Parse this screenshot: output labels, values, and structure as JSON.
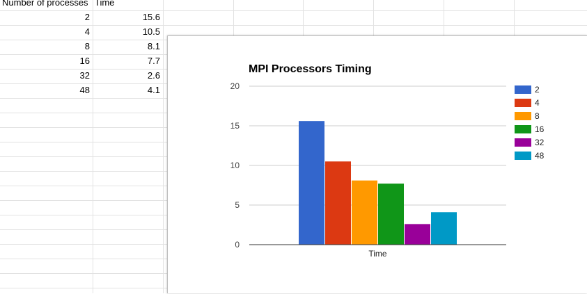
{
  "sheet": {
    "headers": [
      "Number of processes",
      "Time"
    ],
    "rows": [
      {
        "processes": "2",
        "time": "15.6"
      },
      {
        "processes": "4",
        "time": "10.5"
      },
      {
        "processes": "8",
        "time": "8.1"
      },
      {
        "processes": "16",
        "time": "7.7"
      },
      {
        "processes": "32",
        "time": "2.6"
      },
      {
        "processes": "48",
        "time": "4.1"
      }
    ]
  },
  "chart_data": {
    "type": "bar",
    "title": "MPI Processors Timing",
    "categories": [
      "Time"
    ],
    "xlabel": "",
    "ylabel": "",
    "ylim": [
      0,
      20
    ],
    "yticks": [
      "0",
      "5",
      "10",
      "15",
      "20"
    ],
    "grid": true,
    "legend_position": "right",
    "series": [
      {
        "name": "2",
        "values": [
          15.6
        ],
        "color": "#3366cc"
      },
      {
        "name": "4",
        "values": [
          10.5
        ],
        "color": "#dc3912"
      },
      {
        "name": "8",
        "values": [
          8.1
        ],
        "color": "#ff9900"
      },
      {
        "name": "16",
        "values": [
          7.7
        ],
        "color": "#109618"
      },
      {
        "name": "32",
        "values": [
          2.6
        ],
        "color": "#990099"
      },
      {
        "name": "48",
        "values": [
          4.1
        ],
        "color": "#0099c6"
      }
    ]
  }
}
